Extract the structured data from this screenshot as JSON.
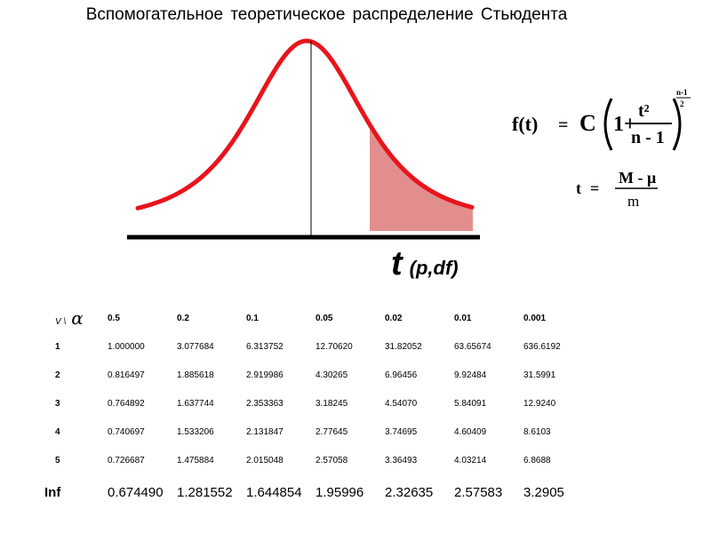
{
  "title": "Вспомогательное теоретическое распределение Стьюдента",
  "axis_label": {
    "t": "t",
    "subscript": "(p,df)"
  },
  "formulas": {
    "density": {
      "lhs": "f(t)",
      "eq": "=",
      "C": "C",
      "one_plus": "1+",
      "num": "t²",
      "den": "n - 1",
      "exponent_num": "n-1",
      "exponent_den": "2"
    },
    "t_stat": {
      "lhs": "t",
      "eq": "=",
      "num": "M - μ",
      "den": "m"
    }
  },
  "colors": {
    "curve": "#e8141c",
    "tail_fill": "#e38e8e",
    "axis": "#000000"
  },
  "chart_data": [
    {
      "type": "area",
      "title": "Вспомогательное теоретическое распределение Стьюдента",
      "xlabel": "t (p,df)",
      "ylabel": "",
      "curve": "Student t density",
      "shaded_region": "right tail",
      "grid": false
    },
    {
      "type": "table",
      "header": {
        "corner": "V \\",
        "corner_symbol": "α",
        "alphas": [
          "0.5",
          "0.2",
          "0.1",
          "0.05",
          "0.02",
          "0.01",
          "0.001"
        ]
      },
      "rows": [
        {
          "v": "1",
          "values": [
            "1.000000",
            "3.077684",
            "6.313752",
            "12.70620",
            "31.82052",
            "63.65674",
            "636.6192"
          ]
        },
        {
          "v": "2",
          "values": [
            "0.816497",
            "1.885618",
            "2.919986",
            "4.30265",
            "6.96456",
            "9.92484",
            "31.5991"
          ]
        },
        {
          "v": "3",
          "values": [
            "0.764892",
            "1.637744",
            "2.353363",
            "3.18245",
            "4.54070",
            "5.84091",
            "12.9240"
          ]
        },
        {
          "v": "4",
          "values": [
            "0.740697",
            "1.533206",
            "2.131847",
            "2.77645",
            "3.74695",
            "4.60409",
            "8.6103"
          ]
        },
        {
          "v": "5",
          "values": [
            "0.726687",
            "1.475884",
            "2.015048",
            "2.57058",
            "3.36493",
            "4.03214",
            "6.8688"
          ]
        }
      ],
      "inf_row": {
        "v": "Inf",
        "values": [
          "0.674490",
          "1.281552",
          "1.644854",
          "1.95996",
          "2.32635",
          "2.57583",
          "3.2905"
        ]
      }
    }
  ]
}
